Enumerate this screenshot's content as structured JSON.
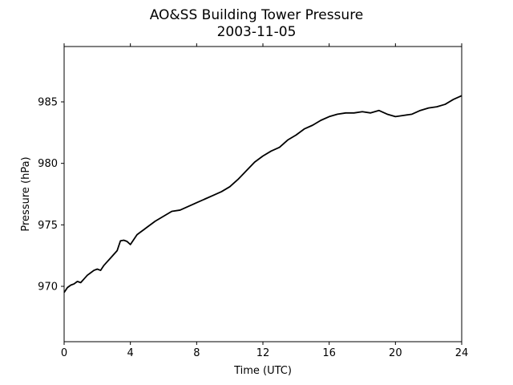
{
  "chart_data": {
    "type": "line",
    "title": "AO&SS Building Tower Pressure",
    "subtitle": "2003-11-05",
    "xlabel": "Time (UTC)",
    "ylabel": "Pressure (hPa)",
    "xlim": [
      0,
      24
    ],
    "ylim": [
      965.5,
      989.5
    ],
    "xticks": [
      0,
      4,
      8,
      12,
      16,
      20,
      24
    ],
    "yticks": [
      970,
      975,
      980,
      985
    ],
    "grid": false,
    "line_color": "#000000",
    "series": [
      {
        "x": [
          0,
          0.2,
          0.4,
          0.6,
          0.8,
          1.0,
          1.2,
          1.4,
          1.6,
          1.8,
          2.0,
          2.2,
          2.4,
          2.6,
          2.8,
          3.0,
          3.2,
          3.4,
          3.6,
          3.8,
          4.0,
          4.2,
          4.4,
          4.6,
          4.8,
          5.0,
          5.5,
          6.0,
          6.5,
          7.0,
          7.5,
          8.0,
          8.5,
          9.0,
          9.5,
          10.0,
          10.5,
          11.0,
          11.5,
          12.0,
          12.5,
          13.0,
          13.5,
          14.0,
          14.5,
          15.0,
          15.5,
          16.0,
          16.5,
          17.0,
          17.5,
          18.0,
          18.5,
          19.0,
          19.5,
          20.0,
          20.5,
          21.0,
          21.5,
          22.0,
          22.5,
          23.0,
          23.5,
          24.0
        ],
        "y": [
          969.5,
          969.9,
          970.1,
          970.2,
          970.4,
          970.3,
          970.6,
          970.9,
          971.1,
          971.3,
          971.4,
          971.3,
          971.7,
          972.0,
          972.3,
          972.6,
          972.9,
          973.7,
          973.75,
          973.65,
          973.4,
          973.8,
          974.2,
          974.4,
          974.6,
          974.8,
          975.3,
          975.7,
          976.1,
          976.2,
          976.5,
          976.8,
          977.1,
          977.4,
          977.7,
          978.1,
          978.7,
          979.4,
          980.1,
          980.6,
          981.0,
          981.3,
          981.9,
          982.3,
          982.8,
          983.1,
          983.5,
          983.8,
          984.0,
          984.1,
          984.1,
          984.2,
          984.1,
          984.3,
          984.0,
          983.8,
          983.9,
          984.0,
          984.3,
          984.5,
          984.6,
          984.8,
          985.2,
          985.5
        ]
      }
    ]
  }
}
